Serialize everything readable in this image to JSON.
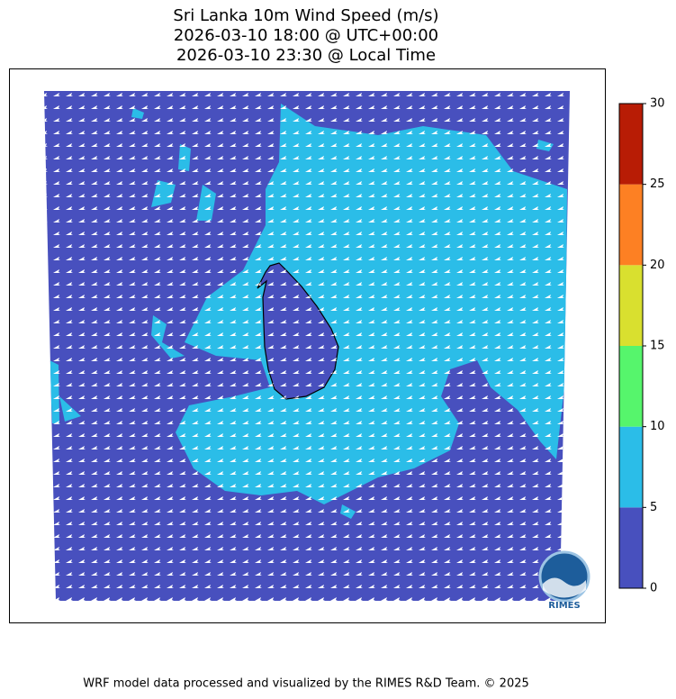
{
  "title": [
    "Sri Lanka 10m Wind Speed (m/s)",
    "2026-03-10 18:00 @ UTC+00:00",
    "2026-03-10 23:30 @ Local Time"
  ],
  "colorbar": {
    "ticks": [
      0,
      5,
      10,
      15,
      20,
      25,
      30
    ],
    "colors": [
      "#4850be",
      "#2bbde8",
      "#56f56c",
      "#d9e02f",
      "#fd8023",
      "#b81c05"
    ]
  },
  "logo": "RIMES",
  "footer": "WRF model data processed and visualized by the RIMES R&D Team. © 2025"
}
